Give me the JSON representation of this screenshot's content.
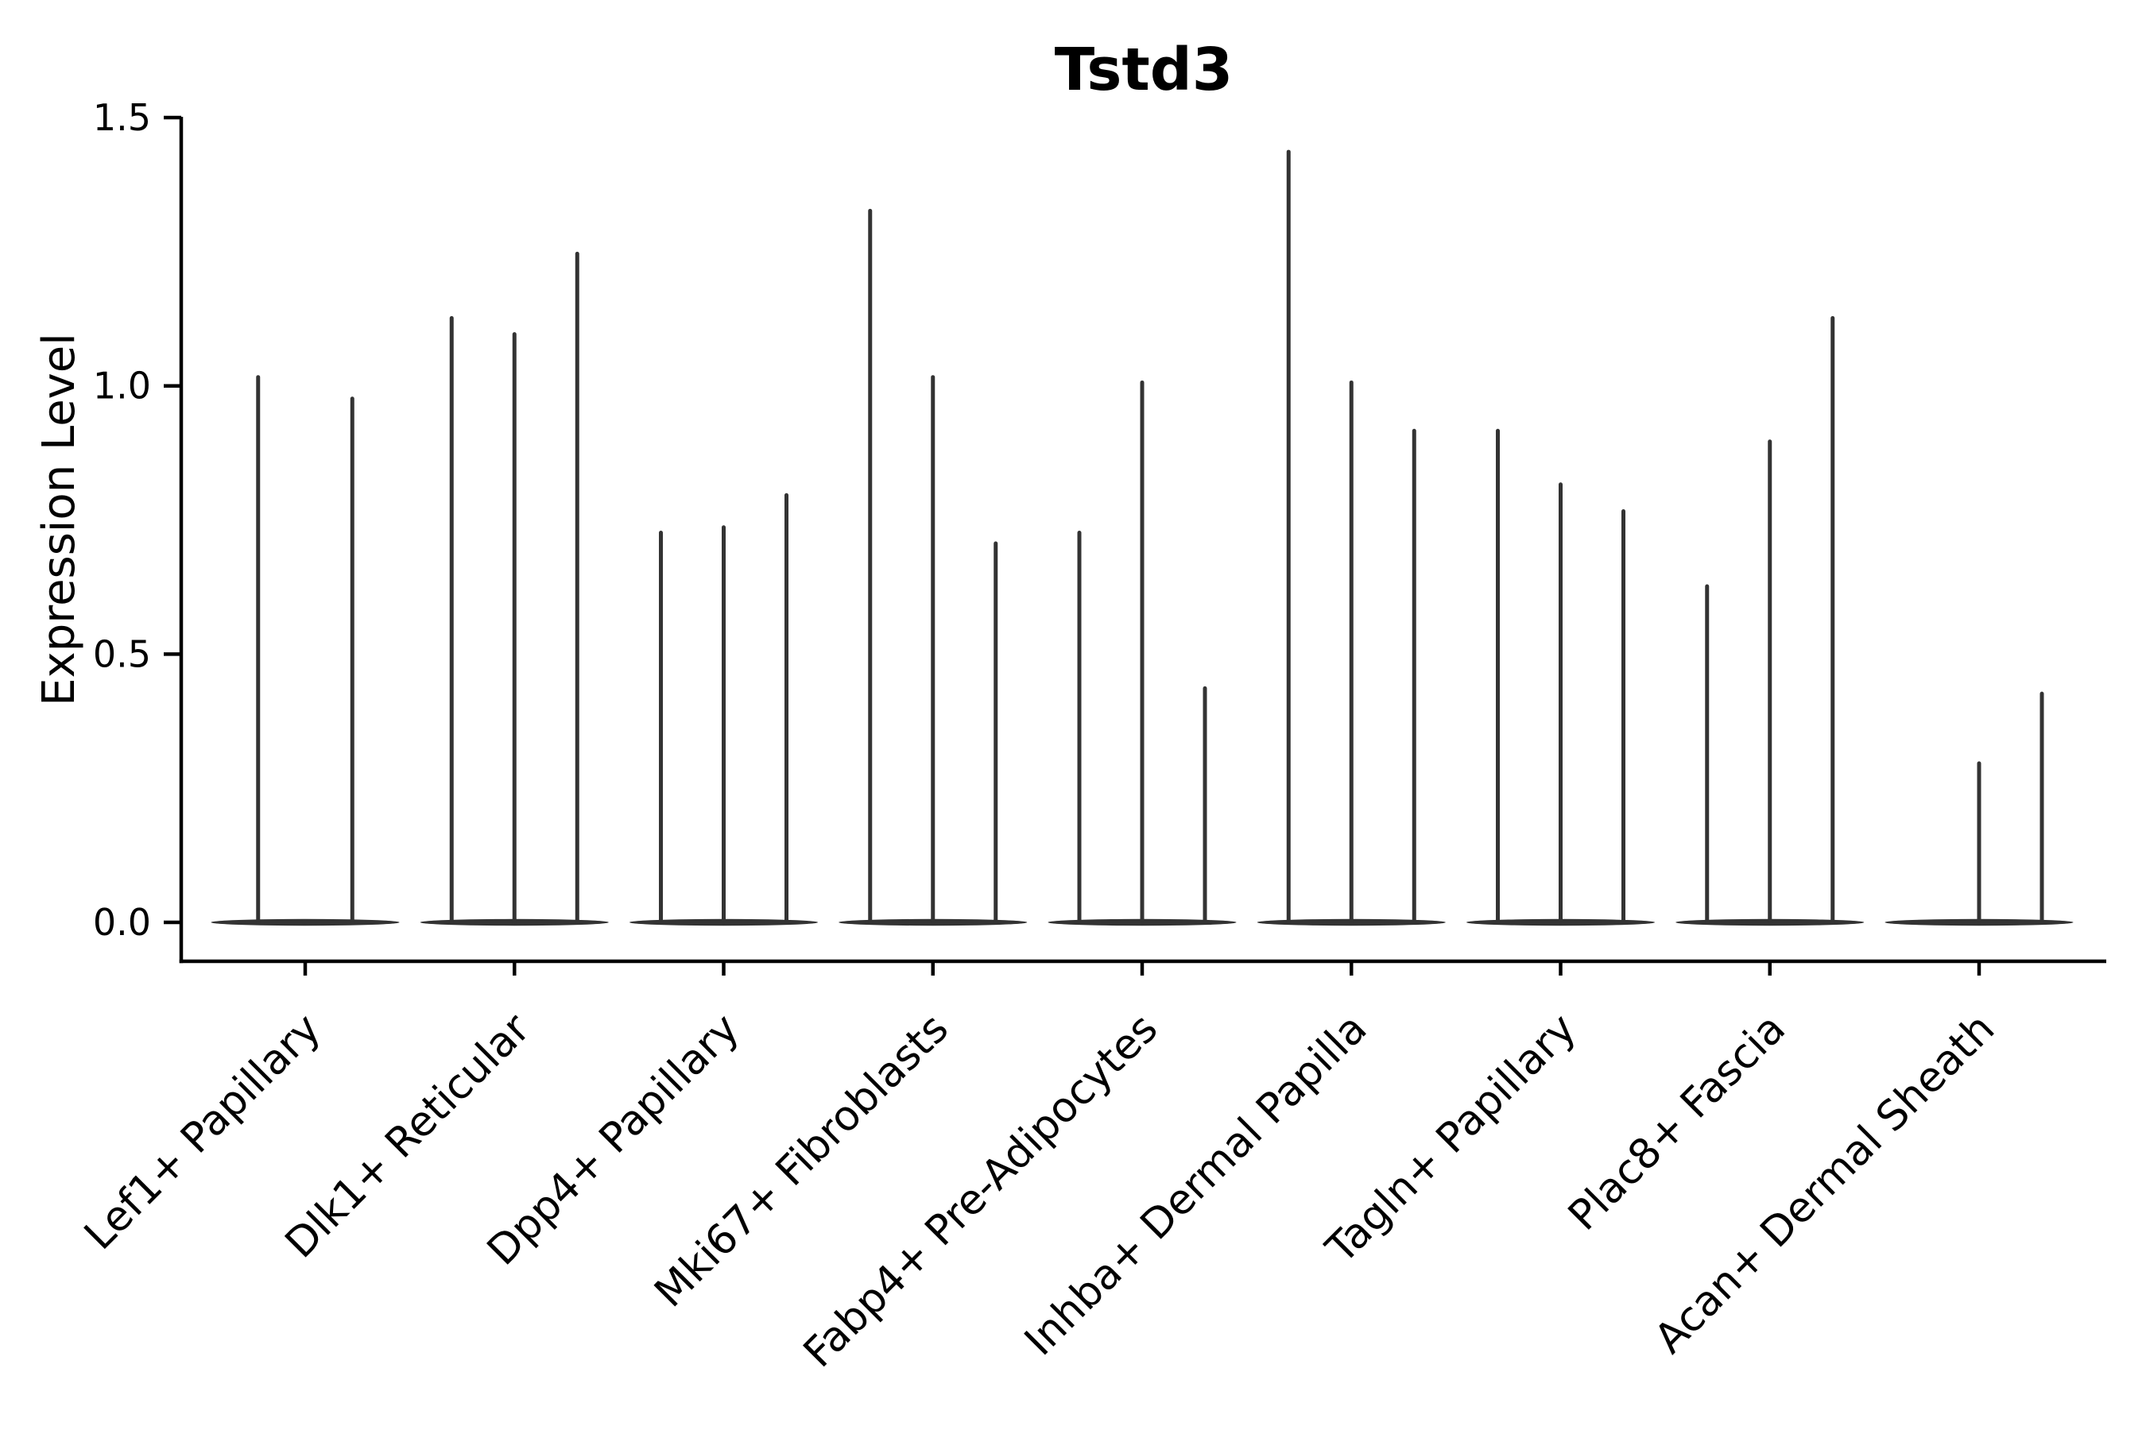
{
  "chart_data": {
    "type": "violin",
    "title": "Tstd3",
    "ylabel": "Expression Level",
    "y_axis": {
      "tick_labels": [
        "0.0",
        "0.5",
        "1.0",
        "1.5"
      ],
      "tick_values": [
        0,
        0.5,
        1.0,
        1.5
      ],
      "range": [
        0,
        1.5
      ]
    },
    "groups": [
      {
        "label": "Lef1+ Papillary",
        "violin_peaks": [
          1.02,
          0.98
        ]
      },
      {
        "label": "Dlk1+ Reticular",
        "violin_peaks": [
          1.13,
          1.1,
          1.25
        ]
      },
      {
        "label": "Dpp4+ Papillary",
        "violin_peaks": [
          0.73,
          0.74,
          0.8
        ]
      },
      {
        "label": "Mki67+ Fibroblasts",
        "violin_peaks": [
          1.33,
          1.02,
          0.71
        ]
      },
      {
        "label": "Fabp4+ Pre-Adipocytes",
        "violin_peaks": [
          0.73,
          1.01,
          0.44
        ]
      },
      {
        "label": "Inhba+ Dermal Papilla",
        "violin_peaks": [
          1.44,
          1.01,
          0.92
        ]
      },
      {
        "label": "Tagln+ Papillary",
        "violin_peaks": [
          0.92,
          0.82,
          0.77
        ]
      },
      {
        "label": "Plac8+ Fascia",
        "violin_peaks": [
          0.63,
          0.9,
          1.13
        ]
      },
      {
        "label": "Acan+ Dermal Sheath",
        "violin_peaks": [
          0,
          0.3,
          0.43
        ]
      }
    ],
    "layout": {
      "grid": false,
      "legend": false,
      "x_label_rotation_deg": 45,
      "violins_per_group_max": 3
    }
  },
  "style": {
    "background_color": "#ffffff",
    "axis_color": "#000000",
    "text_color": "#000000",
    "violin_color": "#333333"
  }
}
